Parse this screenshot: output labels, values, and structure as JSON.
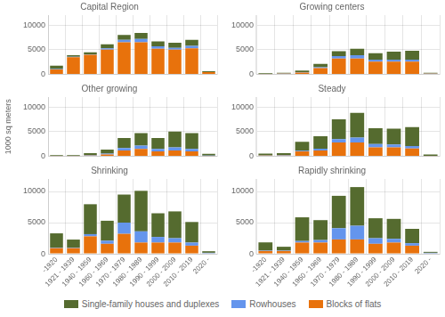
{
  "chart_data": [
    {
      "type": "bar",
      "title": "Capital Region",
      "stacked": true,
      "grid": true,
      "tick_labels": "y",
      "legend": "bottom",
      "categories": [
        "-1920",
        "1921 - 1939",
        "1940 - 1959",
        "1960 - 1969",
        "1970 - 1979",
        "1980 - 1989",
        "1990 - 1999",
        "2000 - 2009",
        "2010 - 2019",
        "2020 -"
      ],
      "series": [
        {
          "name": "Blocks of flats",
          "color": "#E8720C",
          "values": [
            1000,
            3500,
            4000,
            5000,
            6500,
            6500,
            5200,
            5000,
            5300,
            450
          ]
        },
        {
          "name": "Rowhouses",
          "color": "#6495ED",
          "values": [
            80,
            80,
            80,
            300,
            500,
            700,
            500,
            400,
            500,
            40
          ]
        },
        {
          "name": "Single-family houses and duplexes",
          "color": "#556B2F",
          "values": [
            700,
            300,
            400,
            800,
            1000,
            1200,
            1000,
            1000,
            1200,
            150
          ]
        }
      ],
      "ylim": [
        0,
        12000
      ],
      "yticks": [
        0,
        5000,
        10000
      ]
    },
    {
      "type": "bar",
      "title": "Growing centers",
      "stacked": true,
      "grid": true,
      "tick_labels": "y",
      "categories": [
        "-1920",
        "1921 - 1939",
        "1940 - 1959",
        "1960 - 1969",
        "1970 - 1979",
        "1980 - 1989",
        "1990 - 1999",
        "2000 - 2009",
        "2010 - 2019",
        "2020 -"
      ],
      "series": [
        {
          "name": "Blocks of flats",
          "color": "#E8720C",
          "values": [
            80,
            150,
            400,
            1300,
            3200,
            3200,
            2600,
            2600,
            2600,
            150
          ]
        },
        {
          "name": "Rowhouses",
          "color": "#6495ED",
          "values": [
            30,
            30,
            80,
            150,
            500,
            700,
            400,
            400,
            400,
            40
          ]
        },
        {
          "name": "Single-family houses and duplexes",
          "color": "#556B2F",
          "values": [
            150,
            150,
            300,
            700,
            1000,
            1300,
            1300,
            1600,
            1800,
            150
          ]
        }
      ],
      "ylim": [
        0,
        12000
      ],
      "yticks": [
        0,
        5000,
        10000
      ]
    },
    {
      "type": "bar",
      "title": "Other growing",
      "stacked": true,
      "grid": true,
      "tick_labels": "y",
      "ylabel": "1000 sq meters",
      "categories": [
        "-1920",
        "1921 - 1939",
        "1940 - 1959",
        "1960 - 1969",
        "1970 - 1979",
        "1980 - 1989",
        "1990 - 1999",
        "2000 - 2009",
        "2010 - 2019",
        "2020 -"
      ],
      "series": [
        {
          "name": "Blocks of flats",
          "color": "#E8720C",
          "values": [
            80,
            80,
            150,
            400,
            1200,
            1500,
            1000,
            1200,
            1000,
            80
          ]
        },
        {
          "name": "Rowhouses",
          "color": "#6495ED",
          "values": [
            30,
            30,
            80,
            150,
            500,
            700,
            500,
            600,
            500,
            80
          ]
        },
        {
          "name": "Single-family houses and duplexes",
          "color": "#556B2F",
          "values": [
            150,
            150,
            400,
            800,
            2000,
            2500,
            2200,
            3200,
            3200,
            350
          ]
        }
      ],
      "ylim": [
        0,
        12000
      ],
      "yticks": [
        0,
        5000,
        10000
      ]
    },
    {
      "type": "bar",
      "title": "Steady",
      "stacked": true,
      "grid": true,
      "tick_labels": "y",
      "categories": [
        "-1920",
        "1921 - 1939",
        "1940 - 1959",
        "1960 - 1969",
        "1970 - 1979",
        "1980 - 1989",
        "1990 - 1999",
        "2000 - 2009",
        "2010 - 2019",
        "2020 -"
      ],
      "series": [
        {
          "name": "Blocks of flats",
          "color": "#E8720C",
          "values": [
            150,
            150,
            1000,
            1200,
            2800,
            2800,
            1800,
            1800,
            1600,
            80
          ]
        },
        {
          "name": "Rowhouses",
          "color": "#6495ED",
          "values": [
            30,
            80,
            150,
            350,
            700,
            1000,
            700,
            600,
            500,
            40
          ]
        },
        {
          "name": "Single-family houses and duplexes",
          "color": "#556B2F",
          "values": [
            400,
            400,
            1800,
            2500,
            4000,
            5000,
            3200,
            3200,
            3800,
            250
          ]
        }
      ],
      "ylim": [
        0,
        12000
      ],
      "yticks": [
        0,
        5000,
        10000
      ]
    },
    {
      "type": "bar",
      "title": "Shrinking",
      "stacked": true,
      "grid": true,
      "categories": [
        "-1920",
        "1921 - 1939",
        "1940 - 1959",
        "1960 - 1969",
        "1970 - 1979",
        "1980 - 1989",
        "1990 - 1999",
        "2000 - 2009",
        "2010 - 2019",
        "2020 -"
      ],
      "series": [
        {
          "name": "Blocks of flats",
          "color": "#E8720C",
          "values": [
            900,
            900,
            2800,
            1600,
            3200,
            1800,
            1800,
            1800,
            1300,
            80
          ]
        },
        {
          "name": "Rowhouses",
          "color": "#6495ED",
          "values": [
            80,
            80,
            350,
            500,
            1800,
            1800,
            900,
            700,
            500,
            80
          ]
        },
        {
          "name": "Single-family houses and duplexes",
          "color": "#556B2F",
          "values": [
            2300,
            1300,
            4800,
            3200,
            4500,
            6500,
            3800,
            4300,
            3300,
            250
          ]
        }
      ],
      "ylim": [
        0,
        12000
      ],
      "yticks": [
        0,
        5000,
        10000
      ]
    },
    {
      "type": "bar",
      "title": "Rapidly shrinking",
      "stacked": true,
      "grid": true,
      "categories": [
        "-1920",
        "1921 - 1939",
        "1940 - 1959",
        "1960 - 1969",
        "1970 - 1979",
        "1980 - 1989",
        "1990 - 1999",
        "2000 - 2009",
        "2010 - 2019",
        "2020 -"
      ],
      "series": [
        {
          "name": "Blocks of flats",
          "color": "#E8720C",
          "values": [
            450,
            450,
            1800,
            1800,
            2300,
            2300,
            1600,
            1800,
            1300,
            80
          ]
        },
        {
          "name": "Rowhouses",
          "color": "#6495ED",
          "values": [
            80,
            80,
            250,
            400,
            1800,
            2200,
            900,
            600,
            400,
            80
          ]
        },
        {
          "name": "Single-family houses and duplexes",
          "color": "#556B2F",
          "values": [
            1300,
            600,
            3800,
            3200,
            5200,
            6200,
            3200,
            3200,
            2300,
            150
          ]
        }
      ],
      "ylim": [
        0,
        12000
      ],
      "yticks": [
        0,
        5000,
        10000
      ]
    }
  ]
}
